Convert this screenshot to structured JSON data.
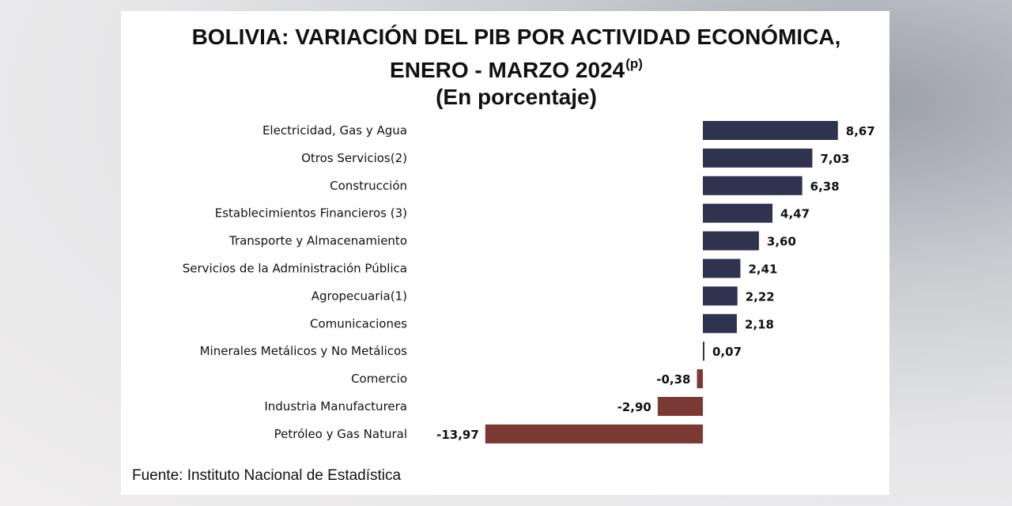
{
  "title": {
    "line1": "BOLIVIA: VARIACIÓN DEL PIB POR ACTIVIDAD ECONÓMICA,",
    "line2": "ENERO - MARZO 2024",
    "line2_sup": "(p)",
    "line3": "(En porcentaje)"
  },
  "source": "Fuente: Instituto Nacional de Estadística",
  "colors": {
    "positive": "#2f3350",
    "negative": "#7a3a33"
  },
  "chart_data": {
    "type": "bar",
    "orientation": "horizontal",
    "categories": [
      "Electricidad, Gas y Agua",
      "Otros Servicios(2)",
      "Construcción",
      "Establecimientos Financieros (3)",
      "Transporte y Almacenamiento",
      "Servicios de la Administración Pública",
      "Agropecuaria(1)",
      "Comunicaciones",
      "Minerales Metálicos y No Metálicos",
      "Comercio",
      "Industria Manufacturera",
      "Petróleo y Gas Natural"
    ],
    "values": [
      8.67,
      7.03,
      6.38,
      4.47,
      3.6,
      2.41,
      2.22,
      2.18,
      0.07,
      -0.38,
      -2.9,
      -13.97
    ],
    "value_labels": [
      "8,67",
      "7,03",
      "6,38",
      "4,47",
      "3,60",
      "2,41",
      "2,22",
      "2,18",
      "0,07",
      "-0,38",
      "-2,90",
      "-13,97"
    ],
    "xlim": [
      -13.97,
      8.67
    ],
    "grid": false,
    "legend": "none"
  }
}
